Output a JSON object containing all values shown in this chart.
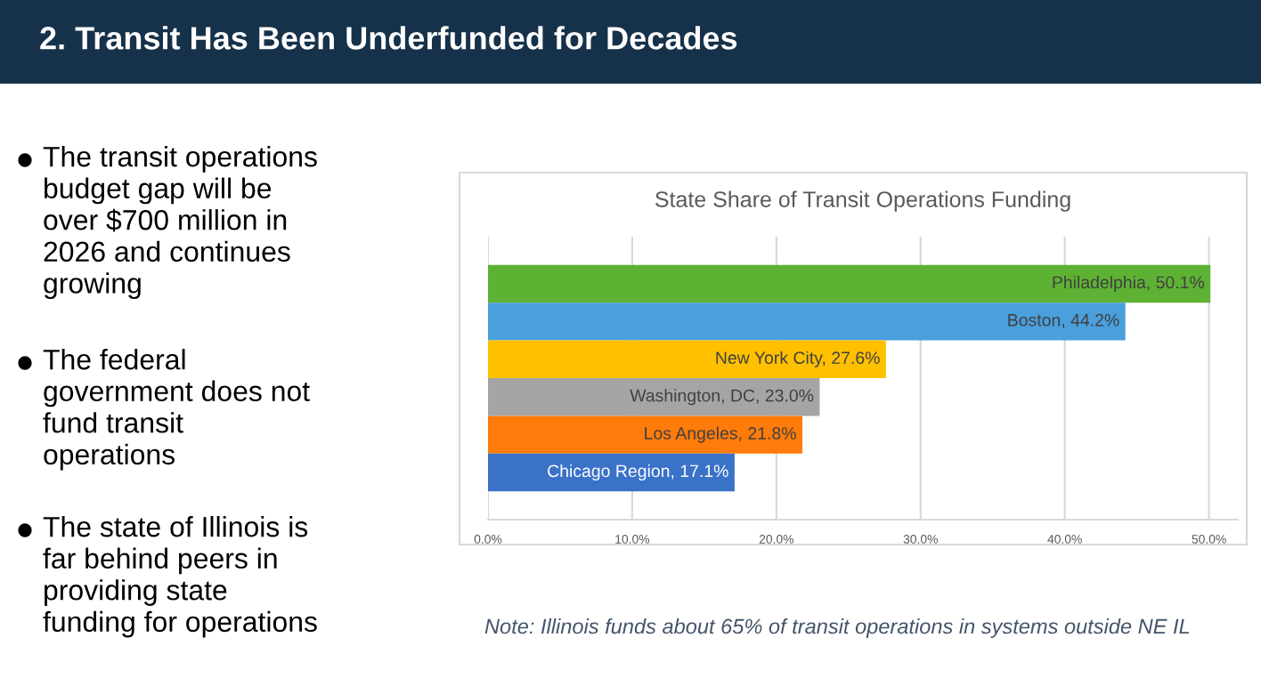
{
  "chart_data": {
    "type": "bar",
    "orientation": "horizontal",
    "title": "State Share of Transit Operations Funding",
    "categories": [
      null,
      null,
      null,
      null,
      null,
      null
    ],
    "values": [
      50.1,
      44.2,
      27.6,
      23.0,
      21.8,
      17.1
    ],
    "colors": [
      "#5eb233",
      "#4a9fdd",
      "#ffc000",
      "#a5a5a5",
      "#ff7b0a",
      "#3a72c8"
    ],
    "value_labels": [
      "Philadelphia, 50.1%",
      "Boston, 44.2%",
      "New York City, 27.6%",
      "Washington, DC, 23.0%",
      "Los Angeles, 21.8%",
      "Chicago Region, 17.1%"
    ],
    "xlim": [
      0,
      52
    ],
    "xticks": [
      {
        "value": 0,
        "label": "0.0%"
      },
      {
        "value": 10,
        "label": "10.0%"
      },
      {
        "value": 20,
        "label": "20.0%"
      },
      {
        "value": 30,
        "label": "30.0%"
      },
      {
        "value": 40,
        "label": "40.0%"
      },
      {
        "value": 50,
        "label": "50.0%"
      }
    ],
    "grid": "x",
    "legend": false,
    "annotations": [
      "2. Transit Has Been Underfunded for Decades",
      "The transit operations\nbudget gap will be\nover $700 million in\n2026 and continues\ngrowing",
      "The federal\ngovernment does not\nfund transit\noperations",
      "The state of Illinois is\nfar behind peers in\nproviding state\nfunding for operations",
      "Note: Illinois funds about 65% of transit operations in systems outside NE IL"
    ]
  }
}
